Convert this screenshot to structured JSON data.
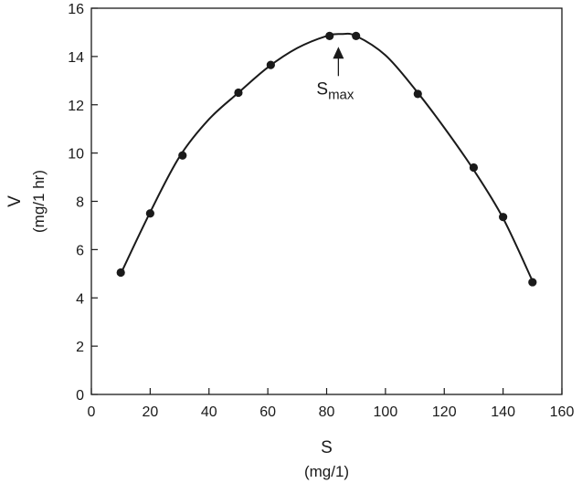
{
  "chart_data": {
    "type": "scatter",
    "title": "",
    "xlabel": "S",
    "xlabel_unit": "(mg/1)",
    "ylabel": "V",
    "ylabel_unit": "(mg/1 hr)",
    "xlim": [
      0,
      160
    ],
    "ylim": [
      0,
      16
    ],
    "xticks": [
      0,
      20,
      40,
      60,
      80,
      100,
      120,
      140,
      160
    ],
    "yticks": [
      0,
      2,
      4,
      6,
      8,
      10,
      12,
      14,
      16
    ],
    "grid": false,
    "series": [
      {
        "x": [
          10,
          20,
          31,
          50,
          61,
          81,
          90,
          111,
          130,
          140,
          150
        ],
        "y": [
          5.05,
          7.5,
          9.9,
          12.5,
          13.65,
          14.85,
          14.85,
          12.45,
          9.4,
          7.35,
          4.65
        ]
      }
    ],
    "fit_curve": {
      "x": [
        10,
        20,
        30,
        40,
        50,
        60,
        70,
        80,
        85,
        90,
        100,
        110,
        120,
        130,
        140,
        150
      ],
      "y": [
        5.0,
        7.55,
        9.85,
        11.4,
        12.5,
        13.55,
        14.35,
        14.85,
        14.93,
        14.85,
        14.05,
        12.65,
        11.05,
        9.3,
        7.3,
        4.7
      ]
    },
    "annotations": [
      {
        "text": "S",
        "subscript": "max",
        "arrow_to": {
          "x": 84,
          "y": 14.93
        }
      }
    ]
  }
}
